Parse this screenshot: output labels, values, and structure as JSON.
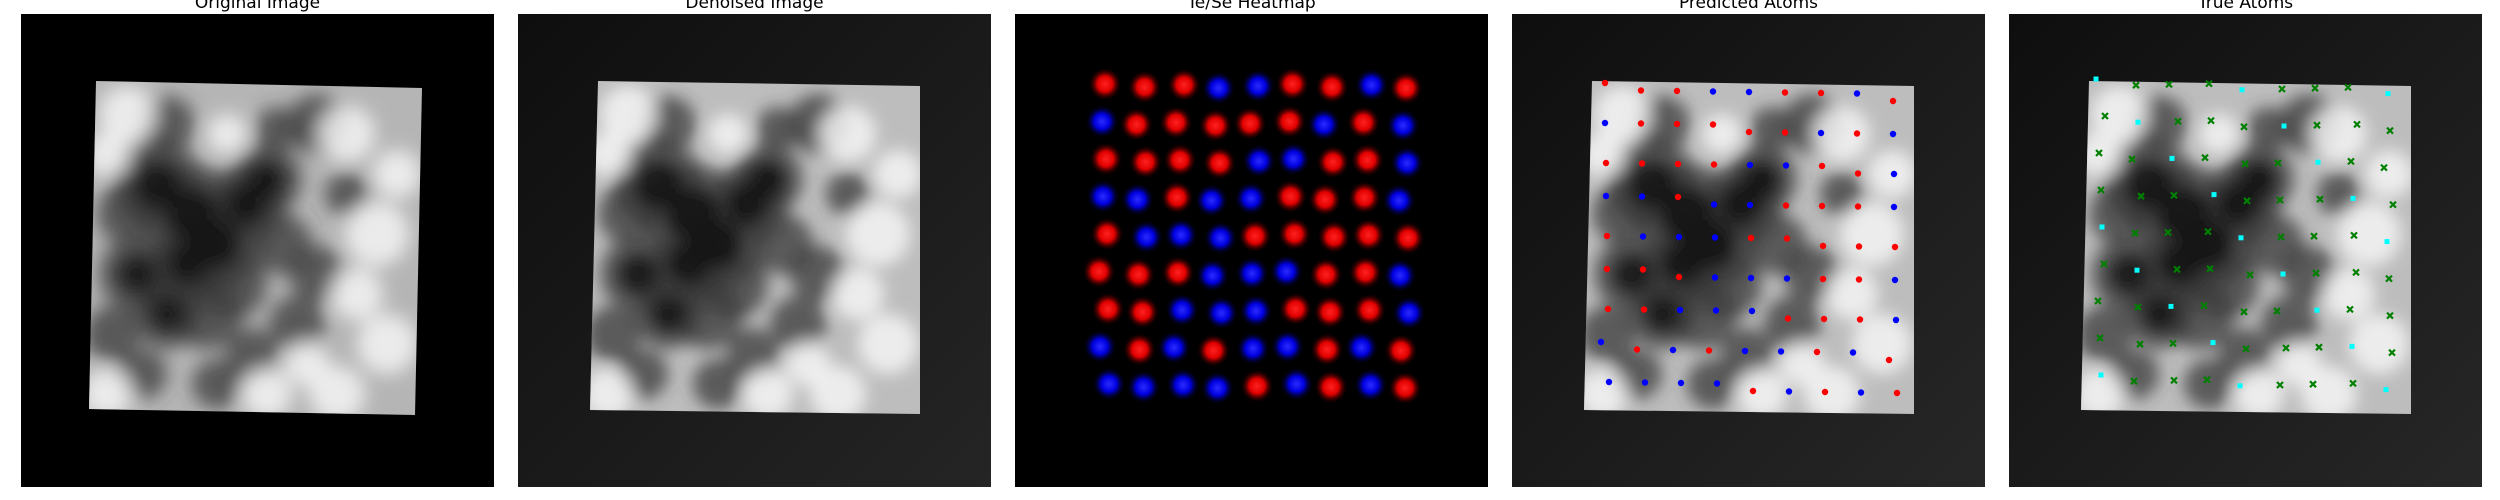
{
  "panels": [
    {
      "title": "Original Image"
    },
    {
      "title": "Denoised Image"
    },
    {
      "title": "Te/Se Heatmap"
    },
    {
      "title": "Predicted Atoms"
    },
    {
      "title": "True Atoms"
    }
  ],
  "colors": {
    "te": "#ff1a1a",
    "se": "#1a1aff",
    "pred_red": "#ff0000",
    "pred_blue": "#0000ff",
    "true_green": "#008000",
    "true_cyan": "#00ffff"
  }
}
